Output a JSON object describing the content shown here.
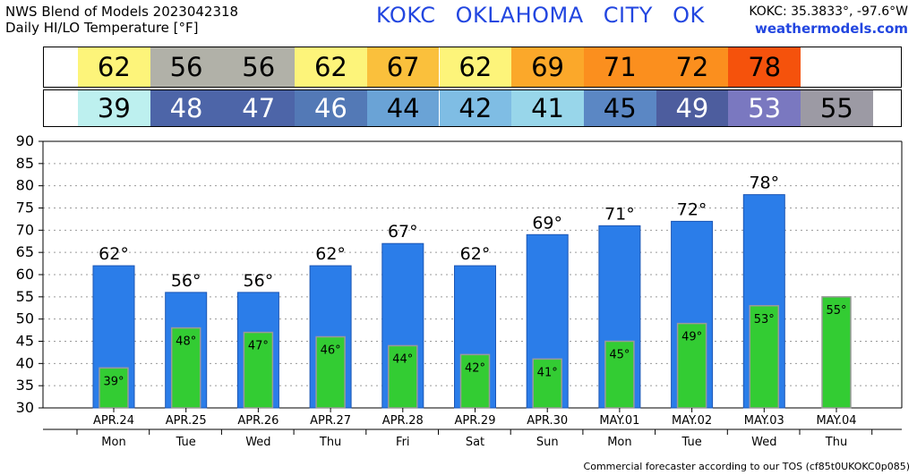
{
  "header": {
    "title_line1": "NWS Blend of Models 2023042318",
    "title_line2": "Daily HI/LO Temperature [°F]",
    "station": "KOKC OKLAHOMA CITY OK",
    "coords": "KOKC: 35.3833°, -97.6°W",
    "site": "weathermodels.com"
  },
  "hi_band": [
    {
      "value": "62",
      "color": "#fdf47a"
    },
    {
      "value": "56",
      "color": "#b1b1a8"
    },
    {
      "value": "56",
      "color": "#b1b1a8"
    },
    {
      "value": "62",
      "color": "#fdf47a"
    },
    {
      "value": "67",
      "color": "#fac03c"
    },
    {
      "value": "62",
      "color": "#fdf47a"
    },
    {
      "value": "69",
      "color": "#fba82a"
    },
    {
      "value": "71",
      "color": "#fb8f1e"
    },
    {
      "value": "72",
      "color": "#fb8f1e"
    },
    {
      "value": "78",
      "color": "#f5520c"
    }
  ],
  "lo_band": [
    {
      "value": "39",
      "color": "#bdf0ef",
      "text_color": "#000000"
    },
    {
      "value": "48",
      "color": "#4d65a8",
      "text_color": "#ffffff"
    },
    {
      "value": "47",
      "color": "#4d65a8",
      "text_color": "#ffffff"
    },
    {
      "value": "46",
      "color": "#5379b6",
      "text_color": "#ffffff"
    },
    {
      "value": "44",
      "color": "#6aa3d6",
      "text_color": "#000000"
    },
    {
      "value": "42",
      "color": "#7fbde4",
      "text_color": "#000000"
    },
    {
      "value": "41",
      "color": "#98d6ea",
      "text_color": "#000000"
    },
    {
      "value": "45",
      "color": "#5b87c4",
      "text_color": "#000000"
    },
    {
      "value": "49",
      "color": "#4d5d9e",
      "text_color": "#ffffff"
    },
    {
      "value": "53",
      "color": "#7a78c0",
      "text_color": "#ffffff"
    },
    {
      "value": "55",
      "color": "#9c9aa4",
      "text_color": "#000000"
    }
  ],
  "chart_data": {
    "type": "bar",
    "categories": [
      "APR.24",
      "APR.25",
      "APR.26",
      "APR.27",
      "APR.28",
      "APR.29",
      "APR.30",
      "MAY.01",
      "MAY.02",
      "MAY.03",
      "MAY.04"
    ],
    "weekdays": [
      "Mon",
      "Tue",
      "Wed",
      "Thu",
      "Fri",
      "Sat",
      "Sun",
      "Mon",
      "Tue",
      "Wed",
      "Thu"
    ],
    "series": [
      {
        "values": [
          62,
          56,
          56,
          62,
          67,
          62,
          69,
          71,
          72,
          78,
          null
        ],
        "labels": [
          "62°",
          "56°",
          "56°",
          "62°",
          "67°",
          "62°",
          "69°",
          "71°",
          "72°",
          "78°",
          ""
        ],
        "color": "#2b7de9"
      },
      {
        "values": [
          39,
          48,
          47,
          46,
          44,
          42,
          41,
          45,
          49,
          53,
          55
        ],
        "labels": [
          "39°",
          "48°",
          "47°",
          "46°",
          "44°",
          "42°",
          "41°",
          "45°",
          "49°",
          "53°",
          "55°"
        ],
        "color": "#33cc33"
      }
    ],
    "ylim": [
      30,
      90
    ],
    "yticks": [
      30,
      35,
      40,
      45,
      50,
      55,
      60,
      65,
      70,
      75,
      80,
      85,
      90
    ],
    "grid": true
  },
  "footer": "Commercial forecaster according to our TOS (cf85t0UKOKC0p085)"
}
